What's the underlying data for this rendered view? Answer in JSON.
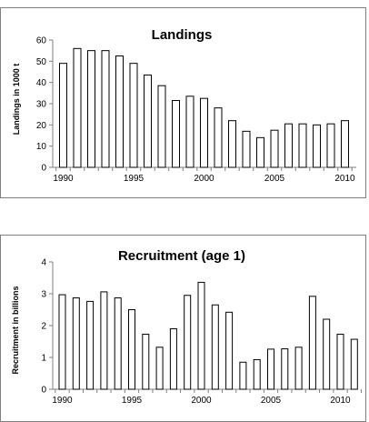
{
  "chart_data": [
    {
      "type": "bar",
      "title": "Landings",
      "xlabel": "",
      "ylabel": "Landings in 1000 t",
      "x": [
        1990,
        1991,
        1992,
        1993,
        1994,
        1995,
        1996,
        1997,
        1998,
        1999,
        2000,
        2001,
        2002,
        2003,
        2004,
        2005,
        2006,
        2007,
        2008,
        2009,
        2010
      ],
      "values": [
        49,
        56,
        55,
        55,
        52.5,
        49,
        43.5,
        38.5,
        31.5,
        33.5,
        32.5,
        28,
        22,
        17,
        14,
        17.5,
        20.5,
        20.5,
        20,
        20.5,
        22
      ],
      "ylim": [
        0,
        60
      ],
      "yticks": [
        0,
        10,
        20,
        30,
        40,
        50,
        60
      ],
      "xtick_labels": [
        "1990",
        "1995",
        "2000",
        "2005",
        "2010"
      ],
      "grid": false,
      "legend": "none"
    },
    {
      "type": "bar",
      "title": "Recruitment (age 1)",
      "xlabel": "",
      "ylabel": "Recruitment in billions",
      "x": [
        1990,
        1991,
        1992,
        1993,
        1994,
        1995,
        1996,
        1997,
        1998,
        1999,
        2000,
        2001,
        2002,
        2003,
        2004,
        2005,
        2006,
        2007,
        2008,
        2009,
        2010,
        2011
      ],
      "values": [
        2.97,
        2.87,
        2.76,
        3.06,
        2.87,
        2.5,
        1.73,
        1.32,
        1.9,
        2.95,
        3.36,
        2.65,
        2.42,
        0.85,
        0.93,
        1.26,
        1.27,
        1.32,
        2.92,
        2.2,
        1.73,
        1.57
      ],
      "ylim": [
        0,
        4
      ],
      "yticks": [
        0,
        1,
        2,
        3,
        4
      ],
      "xtick_labels": [
        "1990",
        "1995",
        "2000",
        "2005",
        "2010"
      ],
      "grid": false,
      "legend": "none"
    }
  ],
  "colors": {
    "bar_fill": "#ffffff",
    "bar_stroke": "#000000",
    "axis": "#7f7f7f",
    "frame": "#7f7f7f"
  }
}
